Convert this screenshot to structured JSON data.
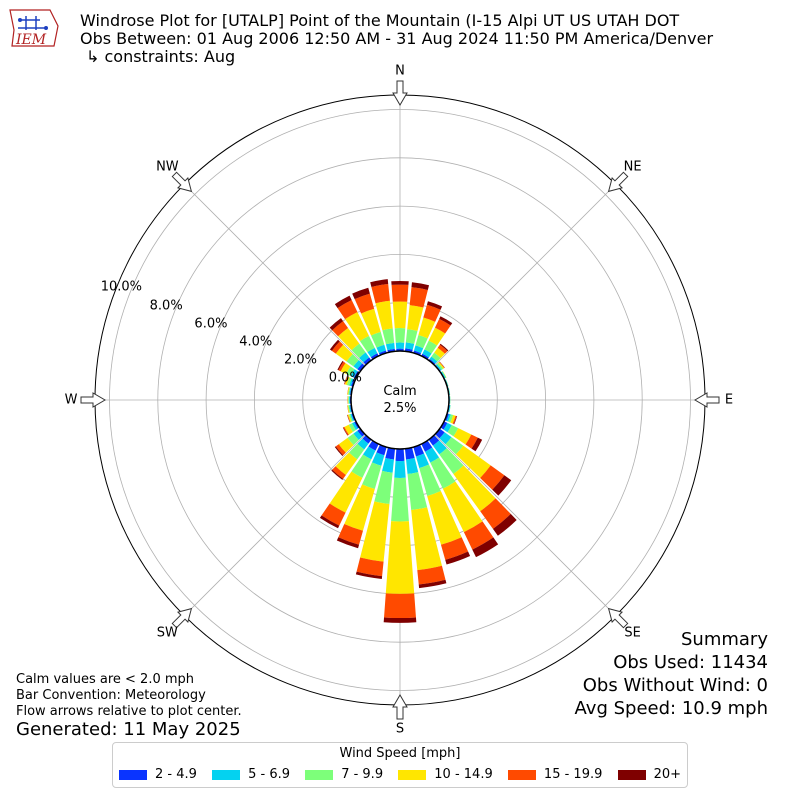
{
  "header": {
    "logo_text": "IEM",
    "title_line1": "Windrose Plot for [UTALP] Point of the Mountain (I-15 Alpi UT US UTAH DOT",
    "title_line2": "Obs Between: 01 Aug 2006 12:50 AM - 31 Aug 2024 11:50 PM America/Denver",
    "title_line3": "↳ constraints: Aug"
  },
  "chart_data": {
    "type": "windrose",
    "units": "%",
    "direction_labels": [
      "N",
      "NE",
      "E",
      "SE",
      "S",
      "SW",
      "W",
      "NW"
    ],
    "radial_tick_labels": [
      "0.0%",
      "2.0%",
      "4.0%",
      "6.0%",
      "8.0%",
      "10.0%"
    ],
    "radial_ticks": [
      0,
      2,
      4,
      6,
      8,
      10
    ],
    "rmax": 10.6,
    "calm_label": "Calm",
    "calm_value": "2.5%",
    "bins": [
      "2 - 4.9",
      "5 - 6.9",
      "7 - 9.9",
      "10 - 14.9",
      "15 - 19.9",
      "20+"
    ],
    "bin_colors": [
      "#0a34ff",
      "#04d2f0",
      "#7dff7a",
      "#ffe600",
      "#ff4a00",
      "#7f0000"
    ],
    "directions_deg": [
      0,
      10,
      20,
      30,
      40,
      50,
      60,
      70,
      80,
      90,
      100,
      110,
      120,
      130,
      140,
      150,
      160,
      170,
      180,
      190,
      200,
      210,
      220,
      230,
      240,
      250,
      260,
      270,
      280,
      290,
      300,
      310,
      320,
      330,
      340,
      350
    ],
    "values": [
      [
        0.1,
        0.25,
        0.6,
        1.1,
        0.7,
        0.15
      ],
      [
        0.12,
        0.25,
        0.55,
        1.0,
        0.75,
        0.2
      ],
      [
        0.1,
        0.22,
        0.45,
        0.75,
        0.55,
        0.15
      ],
      [
        0.1,
        0.2,
        0.4,
        0.6,
        0.4,
        0.12
      ],
      [
        0.07,
        0.12,
        0.2,
        0.25,
        0.15,
        0.05
      ],
      [
        0.04,
        0.06,
        0.08,
        0.05,
        0.02,
        0.01
      ],
      [
        0.03,
        0.04,
        0.03,
        0.01,
        0.0,
        0.0
      ],
      [
        0.03,
        0.02,
        0.01,
        0.0,
        0.0,
        0.0
      ],
      [
        0.03,
        0.02,
        0.01,
        0.0,
        0.0,
        0.0
      ],
      [
        0.03,
        0.02,
        0.01,
        0.0,
        0.0,
        0.0
      ],
      [
        0.04,
        0.03,
        0.01,
        0.0,
        0.0,
        0.0
      ],
      [
        0.08,
        0.08,
        0.1,
        0.1,
        0.05,
        0.02
      ],
      [
        0.15,
        0.2,
        0.3,
        0.6,
        0.3,
        0.2
      ],
      [
        0.25,
        0.35,
        0.6,
        1.4,
        0.7,
        0.35
      ],
      [
        0.3,
        0.45,
        1.0,
        1.9,
        0.9,
        0.35
      ],
      [
        0.35,
        0.5,
        1.2,
        2.0,
        0.8,
        0.35
      ],
      [
        0.4,
        0.5,
        1.2,
        2.1,
        0.65,
        0.2
      ],
      [
        0.45,
        0.6,
        1.5,
        2.5,
        0.6,
        0.15
      ],
      [
        0.5,
        0.7,
        1.8,
        3.0,
        1.0,
        0.2
      ],
      [
        0.45,
        0.55,
        1.3,
        2.4,
        0.6,
        0.12
      ],
      [
        0.35,
        0.45,
        1.0,
        1.8,
        0.6,
        0.15
      ],
      [
        0.3,
        0.4,
        0.85,
        1.6,
        0.6,
        0.12
      ],
      [
        0.2,
        0.3,
        0.5,
        0.8,
        0.2,
        0.05
      ],
      [
        0.15,
        0.2,
        0.3,
        0.45,
        0.15,
        0.05
      ],
      [
        0.08,
        0.1,
        0.15,
        0.2,
        0.05,
        0.02
      ],
      [
        0.06,
        0.05,
        0.06,
        0.05,
        0.02,
        0.01
      ],
      [
        0.05,
        0.04,
        0.04,
        0.03,
        0.01,
        0.0
      ],
      [
        0.05,
        0.04,
        0.03,
        0.02,
        0.01,
        0.0
      ],
      [
        0.05,
        0.04,
        0.04,
        0.03,
        0.01,
        0.0
      ],
      [
        0.08,
        0.08,
        0.1,
        0.08,
        0.03,
        0.01
      ],
      [
        0.1,
        0.15,
        0.2,
        0.25,
        0.1,
        0.05
      ],
      [
        0.15,
        0.2,
        0.35,
        0.55,
        0.2,
        0.1
      ],
      [
        0.15,
        0.25,
        0.45,
        0.8,
        0.35,
        0.15
      ],
      [
        0.12,
        0.25,
        0.55,
        1.1,
        0.55,
        0.2
      ],
      [
        0.1,
        0.25,
        0.55,
        1.0,
        0.65,
        0.25
      ],
      [
        0.1,
        0.25,
        0.6,
        1.15,
        0.7,
        0.2
      ]
    ]
  },
  "notes": {
    "line1": "Calm values are < 2.0 mph",
    "line2": "Bar Convention: Meteorology",
    "line3": "Flow arrows relative to plot center.",
    "generated": "Generated: 11 May 2025"
  },
  "summary": {
    "title": "Summary",
    "obs_used": "Obs Used: 11434",
    "obs_without_wind": "Obs Without Wind: 0",
    "avg_speed": "Avg Speed: 10.9 mph"
  },
  "legend": {
    "title": "Wind Speed [mph]",
    "items": [
      {
        "label": "2 - 4.9",
        "color": "#0a34ff"
      },
      {
        "label": "5 - 6.9",
        "color": "#04d2f0"
      },
      {
        "label": "7 - 9.9",
        "color": "#7dff7a"
      },
      {
        "label": "10 - 14.9",
        "color": "#ffe600"
      },
      {
        "label": "15 - 19.9",
        "color": "#ff4a00"
      },
      {
        "label": "20+",
        "color": "#7f0000"
      }
    ]
  }
}
